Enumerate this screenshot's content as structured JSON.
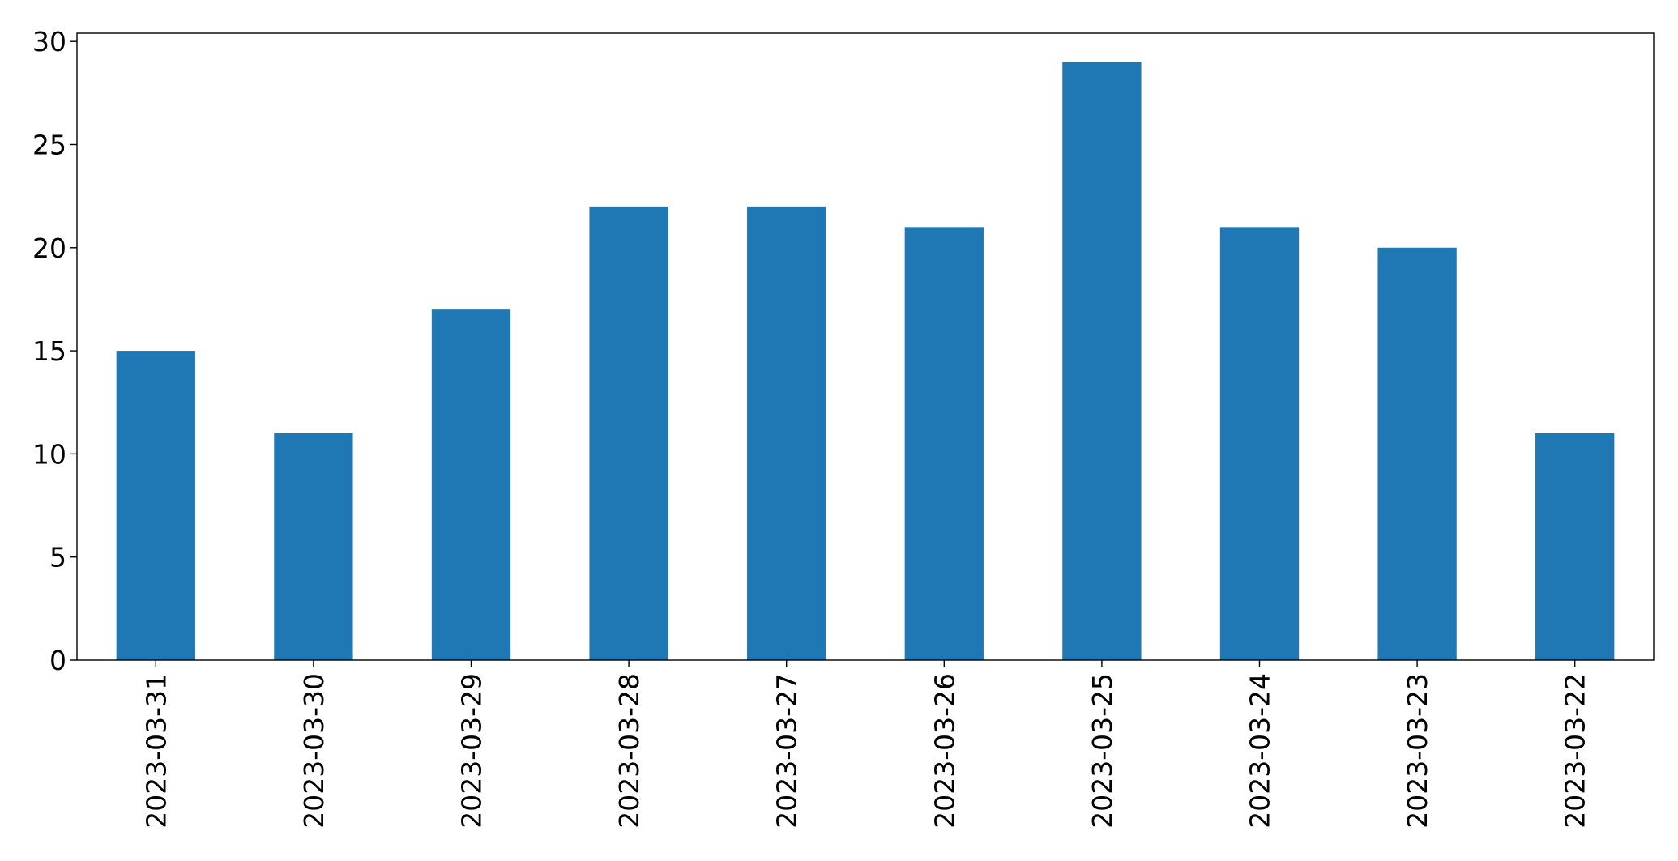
{
  "chart_data": {
    "type": "bar",
    "categories": [
      "2023-03-31",
      "2023-03-30",
      "2023-03-29",
      "2023-03-28",
      "2023-03-27",
      "2023-03-26",
      "2023-03-25",
      "2023-03-24",
      "2023-03-23",
      "2023-03-22"
    ],
    "values": [
      15,
      11,
      17,
      22,
      22,
      21,
      29,
      21,
      20,
      11
    ],
    "title": "",
    "xlabel": "",
    "ylabel": "",
    "ylim": [
      0,
      30
    ],
    "yticks": [
      0,
      5,
      10,
      15,
      20,
      25,
      30
    ],
    "grid": false,
    "legend": "none",
    "x_tick_rotation": "vertical",
    "bar_color": "#1f77b4"
  }
}
